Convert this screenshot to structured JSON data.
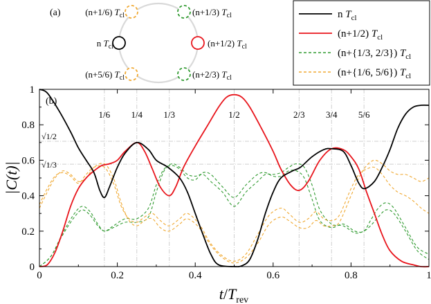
{
  "panel_a": {
    "label": "(a)",
    "ring_color": "#d9d9d9",
    "markers": [
      {
        "id": "n",
        "text": "n",
        "sym": "T",
        "sub": "cl",
        "color": "#000000",
        "style": "solid"
      },
      {
        "id": "n12",
        "text": "(n+1/2)",
        "sym": "T",
        "sub": "cl",
        "color": "#e8141b",
        "style": "solid"
      },
      {
        "id": "n16",
        "text": "(n+1/6)",
        "sym": "T",
        "sub": "cl",
        "color": "#f0a830",
        "style": "dashed"
      },
      {
        "id": "n56",
        "text": "(n+5/6)",
        "sym": "T",
        "sub": "cl",
        "color": "#f0a830",
        "style": "dashed"
      },
      {
        "id": "n13",
        "text": "(n+1/3)",
        "sym": "T",
        "sub": "cl",
        "color": "#2f9a2f",
        "style": "dashed"
      },
      {
        "id": "n23",
        "text": "(n+2/3)",
        "sym": "T",
        "sub": "cl",
        "color": "#2f9a2f",
        "style": "dashed"
      }
    ]
  },
  "legend": [
    {
      "text": "n",
      "sym": "T",
      "sub": "cl",
      "color": "#000000",
      "dash": ""
    },
    {
      "text": "(n+1/2)",
      "sym": "T",
      "sub": "cl",
      "color": "#e8141b",
      "dash": ""
    },
    {
      "text": "(n+{1/3, 2/3})",
      "sym": "T",
      "sub": "cl",
      "color": "#2f9a2f",
      "dash": "4,3"
    },
    {
      "text": "(n+{1/6, 5/6})",
      "sym": "T",
      "sub": "cl",
      "color": "#f0a830",
      "dash": "4,3"
    }
  ],
  "chart_data": {
    "type": "line",
    "panel_label": "(b)",
    "xlabel": {
      "main": "t",
      "slash": "/",
      "sym": "T",
      "sub": "rev"
    },
    "ylabel": "|C(t)|",
    "xlim": [
      0,
      1
    ],
    "ylim": [
      0,
      1
    ],
    "xticks": [
      0,
      0.2,
      0.4,
      0.6,
      0.8,
      1
    ],
    "xtick_labels": [
      "0",
      "0.2",
      "0.4",
      "0.6",
      "0.8",
      "1"
    ],
    "yticks": [
      0,
      0.2,
      0.4,
      0.6,
      0.8,
      1
    ],
    "ytick_labels": [
      "0",
      "0.2",
      "0.4",
      "0.6",
      "0.8",
      "1"
    ],
    "ref_lines_h": [
      {
        "y": 0.7071,
        "label": "√1/2"
      },
      {
        "y": 0.5774,
        "label": "√1/3"
      }
    ],
    "ref_lines_v": [
      {
        "x": 0.1667,
        "label": "1/6"
      },
      {
        "x": 0.25,
        "label": "1/4"
      },
      {
        "x": 0.3333,
        "label": "1/3"
      },
      {
        "x": 0.5,
        "label": "1/2"
      },
      {
        "x": 0.6667,
        "label": "2/3"
      },
      {
        "x": 0.75,
        "label": "3/4"
      },
      {
        "x": 0.8333,
        "label": "5/6"
      }
    ],
    "series": [
      {
        "key": "black",
        "color": "#000000",
        "dash": "",
        "width": 1.8,
        "points": [
          [
            0,
            1.0
          ],
          [
            0.02,
            0.98
          ],
          [
            0.05,
            0.88
          ],
          [
            0.08,
            0.76
          ],
          [
            0.1,
            0.67
          ],
          [
            0.12,
            0.6
          ],
          [
            0.14,
            0.53
          ],
          [
            0.155,
            0.43
          ],
          [
            0.167,
            0.39
          ],
          [
            0.18,
            0.45
          ],
          [
            0.2,
            0.56
          ],
          [
            0.22,
            0.64
          ],
          [
            0.25,
            0.7
          ],
          [
            0.28,
            0.66
          ],
          [
            0.3,
            0.6
          ],
          [
            0.33,
            0.56
          ],
          [
            0.36,
            0.5
          ],
          [
            0.38,
            0.42
          ],
          [
            0.4,
            0.3
          ],
          [
            0.42,
            0.18
          ],
          [
            0.44,
            0.07
          ],
          [
            0.46,
            0.01
          ],
          [
            0.5,
            0.0
          ],
          [
            0.52,
            0.005
          ],
          [
            0.54,
            0.04
          ],
          [
            0.56,
            0.15
          ],
          [
            0.58,
            0.3
          ],
          [
            0.6,
            0.42
          ],
          [
            0.62,
            0.5
          ],
          [
            0.65,
            0.54
          ],
          [
            0.67,
            0.56
          ],
          [
            0.7,
            0.62
          ],
          [
            0.73,
            0.66
          ],
          [
            0.75,
            0.665
          ],
          [
            0.78,
            0.65
          ],
          [
            0.8,
            0.57
          ],
          [
            0.82,
            0.47
          ],
          [
            0.835,
            0.44
          ],
          [
            0.86,
            0.48
          ],
          [
            0.88,
            0.56
          ],
          [
            0.9,
            0.66
          ],
          [
            0.92,
            0.78
          ],
          [
            0.94,
            0.86
          ],
          [
            0.96,
            0.9
          ],
          [
            0.98,
            0.91
          ],
          [
            1.0,
            0.91
          ]
        ]
      },
      {
        "key": "red",
        "color": "#e8141b",
        "dash": "",
        "width": 1.8,
        "points": [
          [
            0,
            0.0
          ],
          [
            0.02,
            0.01
          ],
          [
            0.04,
            0.08
          ],
          [
            0.06,
            0.2
          ],
          [
            0.08,
            0.34
          ],
          [
            0.1,
            0.44
          ],
          [
            0.12,
            0.5
          ],
          [
            0.14,
            0.54
          ],
          [
            0.16,
            0.57
          ],
          [
            0.18,
            0.58
          ],
          [
            0.2,
            0.6
          ],
          [
            0.22,
            0.65
          ],
          [
            0.25,
            0.7
          ],
          [
            0.27,
            0.65
          ],
          [
            0.29,
            0.55
          ],
          [
            0.31,
            0.45
          ],
          [
            0.333,
            0.4
          ],
          [
            0.35,
            0.45
          ],
          [
            0.37,
            0.56
          ],
          [
            0.4,
            0.68
          ],
          [
            0.43,
            0.79
          ],
          [
            0.46,
            0.9
          ],
          [
            0.48,
            0.955
          ],
          [
            0.5,
            0.97
          ],
          [
            0.52,
            0.955
          ],
          [
            0.54,
            0.9
          ],
          [
            0.57,
            0.78
          ],
          [
            0.6,
            0.65
          ],
          [
            0.62,
            0.55
          ],
          [
            0.645,
            0.46
          ],
          [
            0.667,
            0.43
          ],
          [
            0.69,
            0.48
          ],
          [
            0.72,
            0.6
          ],
          [
            0.75,
            0.665
          ],
          [
            0.78,
            0.66
          ],
          [
            0.8,
            0.62
          ],
          [
            0.82,
            0.55
          ],
          [
            0.84,
            0.42
          ],
          [
            0.86,
            0.3
          ],
          [
            0.88,
            0.18
          ],
          [
            0.9,
            0.09
          ],
          [
            0.93,
            0.03
          ],
          [
            0.96,
            0.01
          ],
          [
            0.98,
            0.0
          ],
          [
            1.0,
            0.0
          ]
        ]
      },
      {
        "key": "green1",
        "color": "#2f9a2f",
        "dash": "4,3",
        "width": 1.1,
        "points": [
          [
            0,
            0.0
          ],
          [
            0.03,
            0.06
          ],
          [
            0.06,
            0.18
          ],
          [
            0.09,
            0.28
          ],
          [
            0.11,
            0.32
          ],
          [
            0.13,
            0.29
          ],
          [
            0.15,
            0.23
          ],
          [
            0.167,
            0.2
          ],
          [
            0.19,
            0.22
          ],
          [
            0.22,
            0.25
          ],
          [
            0.25,
            0.25
          ],
          [
            0.28,
            0.28
          ],
          [
            0.3,
            0.42
          ],
          [
            0.32,
            0.54
          ],
          [
            0.34,
            0.58
          ],
          [
            0.36,
            0.56
          ],
          [
            0.38,
            0.52
          ],
          [
            0.4,
            0.51
          ],
          [
            0.42,
            0.52
          ],
          [
            0.44,
            0.48
          ],
          [
            0.47,
            0.42
          ],
          [
            0.5,
            0.34
          ],
          [
            0.53,
            0.42
          ],
          [
            0.56,
            0.48
          ],
          [
            0.58,
            0.52
          ],
          [
            0.6,
            0.52
          ],
          [
            0.62,
            0.53
          ],
          [
            0.64,
            0.56
          ],
          [
            0.66,
            0.58
          ],
          [
            0.68,
            0.56
          ],
          [
            0.7,
            0.46
          ],
          [
            0.72,
            0.32
          ],
          [
            0.75,
            0.24
          ],
          [
            0.78,
            0.23
          ],
          [
            0.81,
            0.19
          ],
          [
            0.833,
            0.2
          ],
          [
            0.85,
            0.23
          ],
          [
            0.87,
            0.28
          ],
          [
            0.89,
            0.32
          ],
          [
            0.91,
            0.3
          ],
          [
            0.94,
            0.2
          ],
          [
            0.97,
            0.09
          ],
          [
            1.0,
            0.04
          ]
        ]
      },
      {
        "key": "green2",
        "color": "#2f9a2f",
        "dash": "4,3",
        "width": 1.1,
        "points": [
          [
            0,
            0.0
          ],
          [
            0.03,
            0.06
          ],
          [
            0.06,
            0.19
          ],
          [
            0.09,
            0.3
          ],
          [
            0.11,
            0.34
          ],
          [
            0.13,
            0.31
          ],
          [
            0.15,
            0.24
          ],
          [
            0.167,
            0.2
          ],
          [
            0.19,
            0.23
          ],
          [
            0.22,
            0.27
          ],
          [
            0.25,
            0.27
          ],
          [
            0.28,
            0.33
          ],
          [
            0.3,
            0.46
          ],
          [
            0.32,
            0.55
          ],
          [
            0.34,
            0.57
          ],
          [
            0.36,
            0.55
          ],
          [
            0.38,
            0.5
          ],
          [
            0.4,
            0.49
          ],
          [
            0.42,
            0.53
          ],
          [
            0.44,
            0.52
          ],
          [
            0.47,
            0.45
          ],
          [
            0.5,
            0.39
          ],
          [
            0.53,
            0.46
          ],
          [
            0.56,
            0.52
          ],
          [
            0.58,
            0.53
          ],
          [
            0.6,
            0.51
          ],
          [
            0.62,
            0.51
          ],
          [
            0.64,
            0.54
          ],
          [
            0.66,
            0.54
          ],
          [
            0.68,
            0.5
          ],
          [
            0.7,
            0.38
          ],
          [
            0.72,
            0.26
          ],
          [
            0.75,
            0.22
          ],
          [
            0.78,
            0.24
          ],
          [
            0.81,
            0.2
          ],
          [
            0.833,
            0.2
          ],
          [
            0.85,
            0.26
          ],
          [
            0.87,
            0.33
          ],
          [
            0.89,
            0.36
          ],
          [
            0.91,
            0.33
          ],
          [
            0.94,
            0.22
          ],
          [
            0.97,
            0.11
          ],
          [
            1.0,
            0.07
          ]
        ]
      },
      {
        "key": "orange1",
        "color": "#f0a830",
        "dash": "4,3",
        "width": 1.1,
        "points": [
          [
            0,
            0.33
          ],
          [
            0.02,
            0.42
          ],
          [
            0.04,
            0.5
          ],
          [
            0.06,
            0.54
          ],
          [
            0.08,
            0.52
          ],
          [
            0.1,
            0.48
          ],
          [
            0.12,
            0.5
          ],
          [
            0.14,
            0.56
          ],
          [
            0.167,
            0.58
          ],
          [
            0.19,
            0.5
          ],
          [
            0.21,
            0.36
          ],
          [
            0.23,
            0.26
          ],
          [
            0.25,
            0.23
          ],
          [
            0.27,
            0.26
          ],
          [
            0.29,
            0.27
          ],
          [
            0.31,
            0.22
          ],
          [
            0.333,
            0.2
          ],
          [
            0.36,
            0.24
          ],
          [
            0.38,
            0.27
          ],
          [
            0.41,
            0.22
          ],
          [
            0.44,
            0.12
          ],
          [
            0.47,
            0.05
          ],
          [
            0.5,
            0.02
          ],
          [
            0.53,
            0.05
          ],
          [
            0.56,
            0.13
          ],
          [
            0.59,
            0.24
          ],
          [
            0.62,
            0.28
          ],
          [
            0.64,
            0.26
          ],
          [
            0.667,
            0.22
          ],
          [
            0.69,
            0.22
          ],
          [
            0.71,
            0.26
          ],
          [
            0.73,
            0.23
          ],
          [
            0.75,
            0.23
          ],
          [
            0.77,
            0.25
          ],
          [
            0.8,
            0.4
          ],
          [
            0.82,
            0.5
          ],
          [
            0.84,
            0.57
          ],
          [
            0.86,
            0.6
          ],
          [
            0.88,
            0.58
          ],
          [
            0.9,
            0.54
          ],
          [
            0.92,
            0.52
          ],
          [
            0.94,
            0.52
          ],
          [
            0.96,
            0.5
          ],
          [
            0.98,
            0.48
          ],
          [
            1.0,
            0.5
          ]
        ]
      },
      {
        "key": "orange2",
        "color": "#f0a830",
        "dash": "4,3",
        "width": 1.1,
        "points": [
          [
            0,
            0.35
          ],
          [
            0.02,
            0.44
          ],
          [
            0.04,
            0.51
          ],
          [
            0.06,
            0.53
          ],
          [
            0.08,
            0.51
          ],
          [
            0.1,
            0.47
          ],
          [
            0.12,
            0.52
          ],
          [
            0.14,
            0.56
          ],
          [
            0.167,
            0.56
          ],
          [
            0.19,
            0.47
          ],
          [
            0.21,
            0.34
          ],
          [
            0.23,
            0.27
          ],
          [
            0.25,
            0.25
          ],
          [
            0.27,
            0.28
          ],
          [
            0.29,
            0.3
          ],
          [
            0.31,
            0.26
          ],
          [
            0.333,
            0.23
          ],
          [
            0.36,
            0.27
          ],
          [
            0.38,
            0.3
          ],
          [
            0.41,
            0.24
          ],
          [
            0.44,
            0.13
          ],
          [
            0.47,
            0.06
          ],
          [
            0.5,
            0.03
          ],
          [
            0.53,
            0.07
          ],
          [
            0.56,
            0.18
          ],
          [
            0.59,
            0.29
          ],
          [
            0.62,
            0.33
          ],
          [
            0.64,
            0.3
          ],
          [
            0.667,
            0.25
          ],
          [
            0.69,
            0.27
          ],
          [
            0.71,
            0.31
          ],
          [
            0.73,
            0.27
          ],
          [
            0.75,
            0.26
          ],
          [
            0.77,
            0.29
          ],
          [
            0.8,
            0.44
          ],
          [
            0.82,
            0.52
          ],
          [
            0.84,
            0.55
          ],
          [
            0.86,
            0.56
          ],
          [
            0.88,
            0.52
          ],
          [
            0.9,
            0.46
          ],
          [
            0.92,
            0.42
          ],
          [
            0.94,
            0.4
          ],
          [
            0.96,
            0.37
          ],
          [
            0.98,
            0.33
          ],
          [
            1.0,
            0.3
          ]
        ]
      }
    ]
  }
}
